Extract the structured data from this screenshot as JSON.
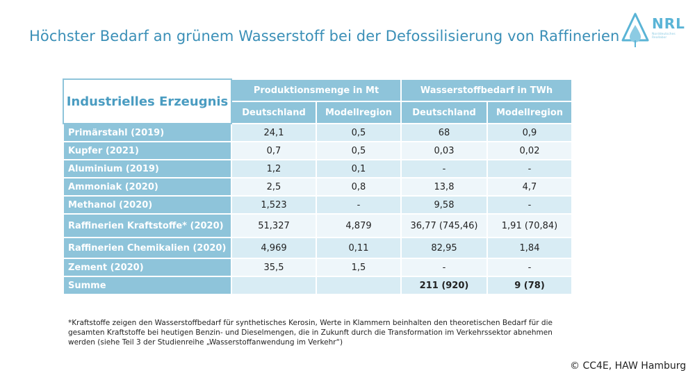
{
  "title": "Höchster Bedarf an grünem Wasserstoff bei der Defossilisierung von Raffinerien",
  "logo": {
    "name": "NRL",
    "subtitle": "Norddeutsches Reallabor"
  },
  "table": {
    "header_main": "Industrielles Erzeugnis",
    "group_headers": [
      "Produktionsmenge in Mt",
      "Wasserstoffbedarf in TWh"
    ],
    "sub_headers": [
      "Deutschland",
      "Modellregion",
      "Deutschland",
      "Modellregion"
    ],
    "rows": [
      {
        "label": "Primärstahl (2019)",
        "values": [
          "24,1",
          "0,5",
          "68",
          "0,9"
        ]
      },
      {
        "label": "Kupfer (2021)",
        "values": [
          "0,7",
          "0,5",
          "0,03",
          "0,02"
        ]
      },
      {
        "label": "Aluminium (2019)",
        "values": [
          "1,2",
          "0,1",
          "-",
          "-"
        ]
      },
      {
        "label": "Ammoniak (2020)",
        "values": [
          "2,5",
          "0,8",
          "13,8",
          "4,7"
        ]
      },
      {
        "label": "Methanol (2020)",
        "values": [
          "1,523",
          "-",
          "9,58",
          "-"
        ]
      },
      {
        "label": "Raffinerien Kraftstoffe* (2020)",
        "values": [
          "51,327",
          "4,879",
          "36,77 (745,46)",
          "1,91 (70,84)"
        ]
      },
      {
        "label": "Raffinerien Chemikalien (2020)",
        "values": [
          "4,969",
          "0,11",
          "82,95",
          "1,84"
        ]
      },
      {
        "label": "Zement (2020)",
        "values": [
          "35,5",
          "1,5",
          "-",
          "-"
        ]
      }
    ],
    "sum_row": {
      "label": "Summe",
      "values": [
        "",
        "",
        "211 (920)",
        "9 (78)"
      ]
    }
  },
  "footnote": "*Kraftstoffe zeigen den Wasserstoffbedarf für synthetisches Kerosin, Werte in Klammern beinhalten den theoretischen Bedarf für die gesamten Kraftstoffe bei heutigen Benzin- und Dieselmengen, die in Zukunft durch die Transformation im Verkehrssektor abnehmen werden (siehe Teil 3 der Studienreihe „Wasserstoffanwendung im Verkehr“)",
  "copyright": "© CC4E, HAW Hamburg",
  "colors": {
    "title": "#3a8fb7",
    "header_bg": "#8ec4da",
    "row_light": "#d8ecf4",
    "row_white": "#eef6fa"
  }
}
